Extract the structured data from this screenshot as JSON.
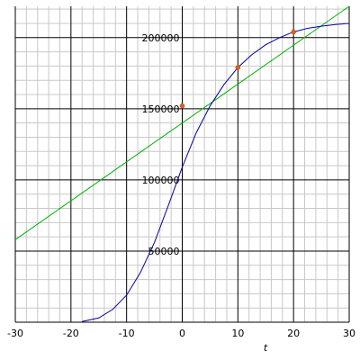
{
  "chart_data": {
    "type": "line",
    "xlabel": "t",
    "xlim": [
      -30,
      30
    ],
    "ylim": [
      0,
      222000
    ],
    "xticks": [
      -30,
      -20,
      -10,
      0,
      10,
      20,
      30
    ],
    "yticks": [
      50000,
      100000,
      150000,
      200000
    ],
    "xminor": [
      -28,
      -26,
      -24,
      -22,
      -18,
      -16,
      -14,
      -12,
      -8,
      -6,
      -4,
      -2,
      2,
      4,
      6,
      8,
      12,
      14,
      16,
      18,
      22,
      24,
      26,
      28
    ],
    "yminor": [
      10000,
      20000,
      30000,
      40000,
      60000,
      70000,
      80000,
      90000,
      110000,
      120000,
      130000,
      140000,
      160000,
      170000,
      180000,
      190000,
      210000,
      220000
    ],
    "grid": true,
    "series": [
      {
        "color": "#00b000",
        "x": [
          -30,
          30
        ],
        "values": [
          58000,
          222000
        ]
      },
      {
        "color": "#0000a0",
        "x": [
          -18,
          -15,
          -12.5,
          -10,
          -7.5,
          -5,
          -2.5,
          0,
          2.5,
          5,
          7.5,
          10,
          12.5,
          15,
          17.5,
          20,
          22.5,
          25,
          27.5,
          30
        ],
        "values": [
          500,
          3000,
          9000,
          19000,
          35000,
          56000,
          82000,
          109000,
          133000,
          152000,
          167000,
          179000,
          188000,
          195000,
          200000,
          204000,
          206500,
          208000,
          209200,
          210000
        ]
      }
    ],
    "points": {
      "color": "#e06020",
      "x": [
        0,
        10,
        20
      ],
      "values": [
        152000,
        179000,
        204000
      ]
    }
  }
}
